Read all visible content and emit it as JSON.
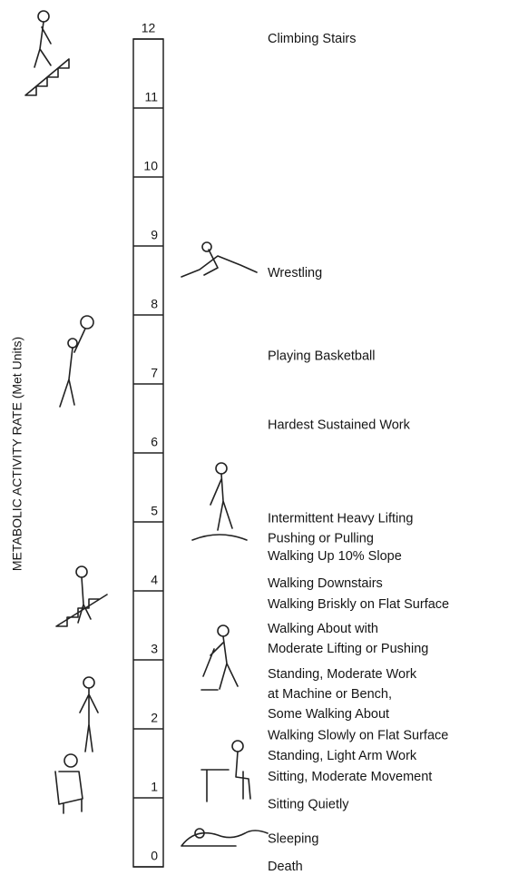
{
  "chart_data": {
    "type": "scale",
    "y_label": "METABOLIC ACTIVITY RATE (Met Units)",
    "ylim": [
      0,
      12
    ],
    "yticks": [
      0,
      1,
      2,
      3,
      4,
      5,
      6,
      7,
      8,
      9,
      10,
      11,
      12
    ],
    "categories": [
      [
        "Climbing Stairs"
      ],
      [
        "Wrestling"
      ],
      [
        "Playing Basketball"
      ],
      [
        "Hardest Sustained Work"
      ],
      [
        "Intermittent Heavy Lifting",
        "Pushing or Pulling"
      ],
      [
        "Walking Up 10% Slope"
      ],
      [
        "Walking Downstairs"
      ],
      [
        "Walking Briskly on Flat Surface"
      ],
      [
        "Walking About with",
        "Moderate Lifting or Pushing"
      ],
      [
        "Standing, Moderate Work",
        "at Machine or Bench,",
        "Some Walking About"
      ],
      [
        "Walking Slowly on Flat Surface"
      ],
      [
        "Standing, Light Arm Work"
      ],
      [
        "Sitting, Moderate Movement"
      ],
      [
        "Sitting Quietly"
      ],
      [
        "Sleeping"
      ],
      [
        "Death"
      ]
    ],
    "values": [
      12,
      8.6,
      7.4,
      6.4,
      4.9,
      4.5,
      4.1,
      3.8,
      3.3,
      2.5,
      1.9,
      1.6,
      1.3,
      0.9,
      0.4,
      0
    ]
  }
}
